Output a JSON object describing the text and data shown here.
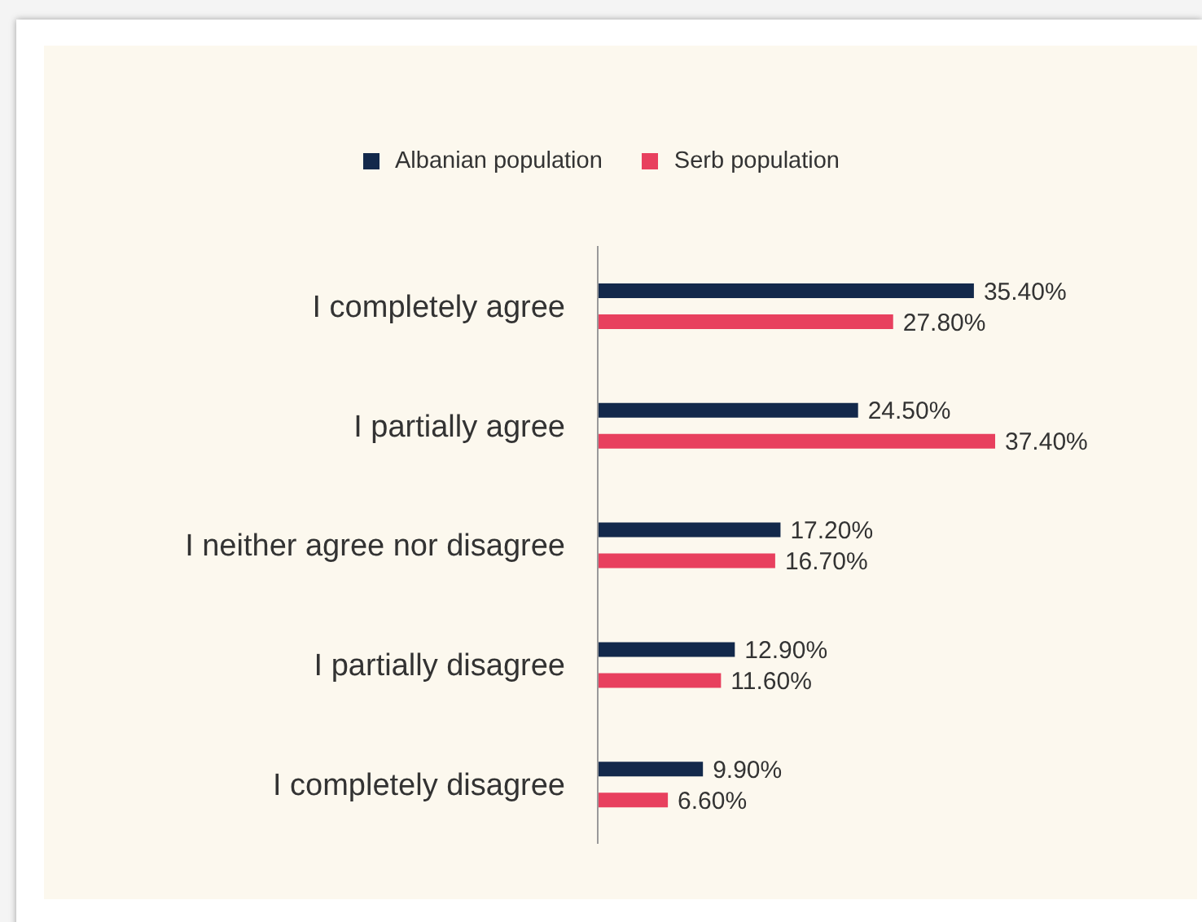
{
  "chart_data": {
    "type": "bar",
    "orientation": "horizontal",
    "legend": "top",
    "categories": [
      "I completely agree",
      "I partially agree",
      "I neither agree nor disagree",
      "I partially disagree",
      "I completely disagree"
    ],
    "series": [
      {
        "name": "Albanian population",
        "color": "#13294b",
        "values": [
          35.4,
          24.5,
          17.2,
          12.9,
          9.9
        ],
        "value_labels": [
          "35.40%",
          "24.50%",
          "17.20%",
          "12.90%",
          "9.90%"
        ]
      },
      {
        "name": "Serb population",
        "color": "#e8405e",
        "values": [
          27.8,
          37.4,
          16.7,
          11.6,
          6.6
        ],
        "value_labels": [
          "27.80%",
          "37.40%",
          "16.70%",
          "11.60%",
          "6.60%"
        ]
      }
    ]
  }
}
